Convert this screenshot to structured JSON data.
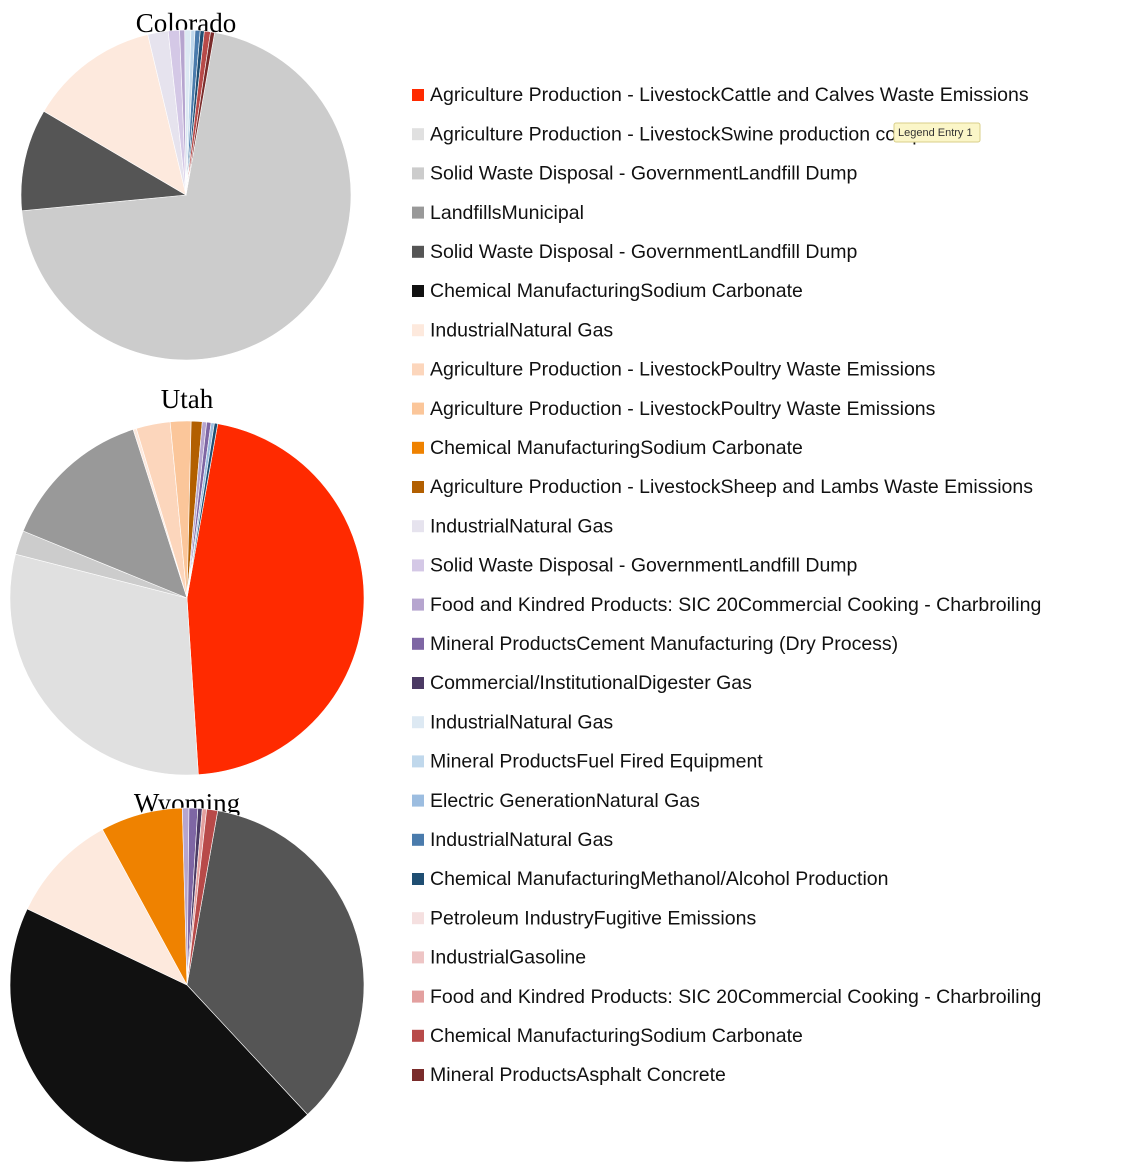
{
  "chart_data": {
    "type": "pie",
    "categories": [
      "Agriculture Production - LivestockCattle and Calves Waste Emissions",
      "Agriculture Production - LivestockSwine production composite",
      "Solid Waste Disposal - GovernmentLandfill Dump",
      "LandfillsMunicipal",
      "Solid Waste Disposal - GovernmentLandfill Dump",
      "Chemical ManufacturingSodium Carbonate",
      "IndustrialNatural Gas",
      "Agriculture Production - LivestockPoultry Waste Emissions",
      "Agriculture Production - LivestockPoultry Waste Emissions",
      "Chemical ManufacturingSodium Carbonate",
      "Agriculture Production - LivestockSheep and Lambs Waste Emissions",
      "IndustrialNatural Gas",
      "Solid Waste Disposal - GovernmentLandfill Dump",
      "Food and Kindred Products: SIC 20Commercial Cooking - Charbroiling",
      "Mineral ProductsCement Manufacturing (Dry Process)",
      "Commercial/InstitutionalDigester Gas",
      "IndustrialNatural Gas",
      "Mineral ProductsFuel Fired Equipment",
      "Electric GenerationNatural Gas",
      "IndustrialNatural Gas",
      "Chemical ManufacturingMethanol/Alcohol Production",
      "Petroleum IndustryFugitive Emissions",
      "IndustrialGasoline",
      "Food and Kindred Products: SIC 20Commercial Cooking - Charbroiling",
      "Chemical ManufacturingSodium Carbonate",
      "Mineral ProductsAsphalt Concrete"
    ],
    "colors": [
      "#ff2a00",
      "#e0e0e0",
      "#cccccc",
      "#999999",
      "#555555",
      "#111111",
      "#fde9dd",
      "#fcd6bc",
      "#fbc69a",
      "#ef8200",
      "#b25f00",
      "#e6e3ee",
      "#d4c8e6",
      "#b6a5cf",
      "#7e66a4",
      "#4b3a64",
      "#dde9f3",
      "#c0d8ec",
      "#9cbde0",
      "#4a7bac",
      "#1f4e72",
      "#f5e0e0",
      "#eec5c5",
      "#e3a09f",
      "#b84a49",
      "#7a2c2b"
    ],
    "series": [
      {
        "name": "Colorado",
        "values": [
          0,
          0,
          70.7,
          0,
          10.0,
          0,
          12.8,
          0,
          0,
          0,
          0,
          2.0,
          1.1,
          0.5,
          0,
          0,
          0.6,
          0.4,
          0,
          0.5,
          0.4,
          0,
          0,
          0,
          0.6,
          0.4
        ]
      },
      {
        "name": "Utah",
        "values": [
          46.2,
          30.0,
          2.2,
          13.9,
          0,
          0,
          0.3,
          3.1,
          1.9,
          0,
          1.0,
          0,
          0,
          0.4,
          0.4,
          0,
          0,
          0,
          0.3,
          0,
          0.3,
          0,
          0,
          0,
          0,
          0
        ]
      },
      {
        "name": "Wyoming",
        "values": [
          0,
          0,
          0,
          0,
          35.3,
          44.0,
          10.0,
          0,
          0,
          7.5,
          0,
          0,
          0,
          0.6,
          0.8,
          0.4,
          0,
          0,
          0,
          0,
          0,
          0,
          0,
          0.4,
          1.0,
          0
        ]
      }
    ],
    "tooltip": "Legend Entry 1"
  }
}
